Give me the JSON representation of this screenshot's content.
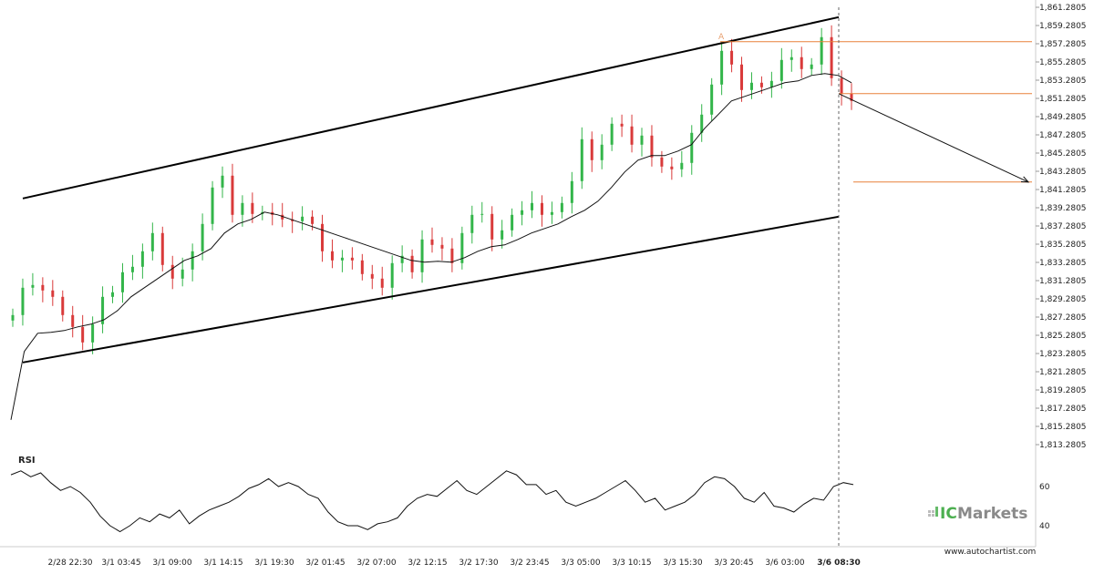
{
  "chart_data": [
    {
      "type": "candlestick",
      "title": "",
      "ylim": [
        1813.2805,
        1861.2805
      ],
      "y_ticks": [
        "1,861.2805",
        "1,859.2805",
        "1,857.2805",
        "1,855.2805",
        "1,853.2805",
        "1,851.2805",
        "1,849.2805",
        "1,847.2805",
        "1,845.2805",
        "1,843.2805",
        "1,841.2805",
        "1,839.2805",
        "1,837.2805",
        "1,835.2805",
        "1,833.2805",
        "1,831.2805",
        "1,829.2805",
        "1,827.2805",
        "1,825.2805",
        "1,823.2805",
        "1,821.2805",
        "1,819.2805",
        "1,817.2805",
        "1,815.2805",
        "1,813.2805"
      ],
      "x_ticks": [
        "2/28 22:30",
        "3/1 03:45",
        "3/1 09:00",
        "3/1 14:15",
        "3/1 19:30",
        "3/2 01:45",
        "3/2 07:00",
        "3/2 12:15",
        "3/2 17:30",
        "3/2 23:45",
        "3/3 05:00",
        "3/3 10:15",
        "3/3 15:30",
        "3/3 20:45",
        "3/6 03:00",
        "3/6 08:30"
      ],
      "highlighted_x_tick": "3/6 08:30",
      "colors": {
        "up": "#33b54a",
        "down": "#d93a3a",
        "moving_average": "#111111",
        "channel": "#000000",
        "levels": "#e8803a"
      },
      "series": [
        {
          "kind": "close",
          "values": [
            1827.5,
            1830.5,
            1830.8,
            1830.2,
            1829.5,
            1827.5,
            1826.2,
            1824.5,
            1826.5,
            1829.5,
            1830.0,
            1832.2,
            1832.8,
            1834.5,
            1836.5,
            1833.0,
            1831.5,
            1832.5,
            1834.5,
            1837.5,
            1841.5,
            1842.8,
            1838.5,
            1839.8,
            1838.6,
            1838.8,
            1838.5,
            1838.0,
            1837.8,
            1838.3,
            1837.5,
            1834.5,
            1833.5,
            1833.8,
            1833.5,
            1832.0,
            1831.5,
            1830.5,
            1833.2,
            1834.0,
            1832.2,
            1835.8,
            1835.2,
            1834.8,
            1833.2,
            1836.5,
            1838.5,
            1838.6,
            1835.8,
            1836.8,
            1838.5,
            1839.0,
            1839.8,
            1838.5,
            1838.8,
            1839.8,
            1842.2,
            1846.8,
            1844.5,
            1846.2,
            1848.5,
            1848.2,
            1846.2,
            1847.2,
            1844.8,
            1843.8,
            1843.5,
            1844.2,
            1847.5,
            1849.5,
            1852.8,
            1856.5,
            1855.0,
            1852.2,
            1853.0,
            1852.5,
            1853.2,
            1855.5,
            1855.8,
            1854.5,
            1855.0,
            1858.0,
            1853.5,
            1851.8,
            1851.0
          ]
        },
        {
          "kind": "moving_average",
          "values": [
            1816.0,
            1823.5,
            1825.5,
            1825.6,
            1825.8,
            1826.2,
            1826.5,
            1827.0,
            1828.0,
            1829.5,
            1830.5,
            1831.5,
            1832.5,
            1833.5,
            1834.0,
            1834.8,
            1836.5,
            1837.5,
            1838.0,
            1838.8,
            1838.5,
            1838.0,
            1837.5,
            1837.0,
            1836.5,
            1836.0,
            1835.5,
            1835.0,
            1834.5,
            1834.0,
            1833.5,
            1833.3,
            1833.4,
            1833.3,
            1833.8,
            1834.5,
            1835.0,
            1835.2,
            1835.8,
            1836.5,
            1837.0,
            1837.5,
            1838.3,
            1839.0,
            1840.0,
            1841.5,
            1843.2,
            1844.5,
            1845.0,
            1845.0,
            1845.5,
            1846.2,
            1848.0,
            1849.5,
            1851.0,
            1851.5,
            1852.0,
            1852.5,
            1853.0,
            1853.2,
            1853.8,
            1854.0,
            1853.8,
            1853.0
          ]
        }
      ],
      "channel": {
        "upper": {
          "from": [
            "2/28 22:30",
            1840.3
          ],
          "to": [
            "3/6 08:30",
            1860.2
          ]
        },
        "lower": {
          "from": [
            "2/28 22:30",
            1822.3
          ],
          "to": [
            "3/6 08:30",
            1838.3
          ]
        }
      },
      "horizontal_levels": [
        1857.5,
        1851.8,
        1842.1
      ],
      "forecast_arrow": {
        "from": [
          "3/6 08:30",
          1851.8
        ],
        "to_value": 1842.1
      },
      "pattern_marker": "A"
    },
    {
      "type": "line",
      "title": "RSI",
      "y_ticks": [
        60,
        40
      ],
      "values": [
        66,
        68,
        65,
        67,
        62,
        58,
        60,
        57,
        52,
        45,
        40,
        37,
        40,
        44,
        42,
        46,
        44,
        48,
        41,
        45,
        48,
        50,
        52,
        55,
        59,
        61,
        64,
        60,
        62,
        60,
        56,
        54,
        47,
        42,
        40,
        40,
        38,
        41,
        42,
        44,
        50,
        54,
        56,
        55,
        59,
        63,
        58,
        56,
        60,
        64,
        68,
        66,
        61,
        61,
        56,
        58,
        52,
        50,
        52,
        54,
        57,
        60,
        63,
        58,
        52,
        54,
        48,
        50,
        52,
        56,
        62,
        65,
        64,
        60,
        54,
        52,
        57,
        50,
        49,
        47,
        51,
        54,
        53,
        60,
        62,
        61
      ]
    }
  ],
  "branding": {
    "logo_ic": "IC",
    "logo_rest": "Markets",
    "website": "www.autochartist.com"
  }
}
